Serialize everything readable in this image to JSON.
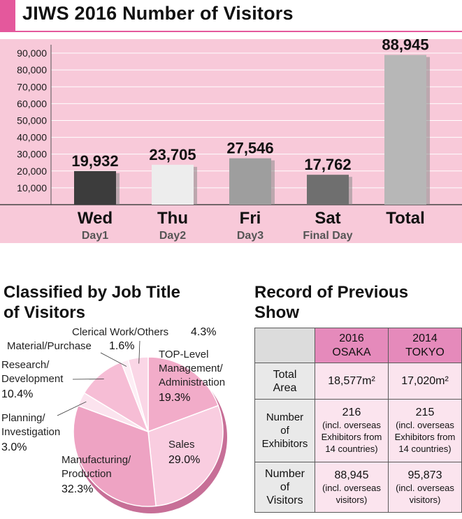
{
  "title": "JIWS 2016 Number of Visitors",
  "colors": {
    "accent": "#e4589c",
    "panel_bg": "#f8c9d9"
  },
  "chart_data": [
    {
      "type": "bar",
      "categories": [
        "Wed",
        "Thu",
        "Fri",
        "Sat",
        "Total"
      ],
      "sublabels": [
        "Day1",
        "Day2",
        "Day3",
        "Final Day",
        ""
      ],
      "values": [
        19932,
        23705,
        27546,
        17762,
        88945
      ],
      "value_labels": [
        "19,932",
        "23,705",
        "27,546",
        "17,762",
        "88,945"
      ],
      "bar_colors": [
        "#3c3c3c",
        "#ededed",
        "#9e9e9e",
        "#6f6f6f",
        "#b7b7b7"
      ],
      "yticks": [
        10000,
        20000,
        30000,
        40000,
        50000,
        60000,
        70000,
        80000,
        90000
      ],
      "ytick_labels": [
        "10,000",
        "20,000",
        "30,000",
        "40,000",
        "50,000",
        "60,000",
        "70,000",
        "80,000",
        "90,000"
      ],
      "ylim": [
        0,
        95000
      ],
      "title": "JIWS 2016 Number of Visitors"
    },
    {
      "type": "pie",
      "title_lines": [
        "Classified by Job Title",
        "of Visitors"
      ],
      "slices": [
        {
          "label_lines": [
            "TOP-Level",
            "Management/",
            "Administration"
          ],
          "pct_text": "19.3%",
          "value": 19.3,
          "color": "#f2acc9"
        },
        {
          "label_lines": [
            "Sales"
          ],
          "pct_text": "29.0%",
          "value": 29.0,
          "color": "#f9cde0"
        },
        {
          "label_lines": [
            "Manufacturing/",
            "Production"
          ],
          "pct_text": "32.3%",
          "value": 32.3,
          "color": "#eea3c3"
        },
        {
          "label_lines": [
            "Planning/",
            "Investigation"
          ],
          "pct_text": "3.0%",
          "value": 3.0,
          "color": "#fbe3ee"
        },
        {
          "label_lines": [
            "Research/",
            "Development"
          ],
          "pct_text": "10.4%",
          "value": 10.4,
          "color": "#f6bdd5"
        },
        {
          "label_lines": [
            "Material/Purchase"
          ],
          "pct_text": "1.6%",
          "value": 1.6,
          "color": "#fdeef5"
        },
        {
          "label_lines": [
            "Clerical Work/Others"
          ],
          "pct_text": "4.3%",
          "value": 4.3,
          "color": "#fad6e6"
        }
      ]
    }
  ],
  "record": {
    "title_lines": [
      "Record of Previous",
      "Show"
    ],
    "col_heads": [
      {
        "year": "2016",
        "place": "OSAKA"
      },
      {
        "year": "2014",
        "place": "TOKYO"
      }
    ],
    "rows": [
      {
        "head_lines": [
          "Total",
          "Area"
        ],
        "cells": [
          {
            "main": "18,577m²",
            "notes": []
          },
          {
            "main": "17,020m²",
            "notes": []
          }
        ]
      },
      {
        "head_lines": [
          "Number",
          "of",
          "Exhibitors"
        ],
        "cells": [
          {
            "main": "216",
            "notes": [
              "(incl. overseas",
              "Exhibitors from",
              "14 countries)"
            ]
          },
          {
            "main": "215",
            "notes": [
              "(incl. overseas",
              "Exhibitors from",
              "14 countries)"
            ]
          }
        ]
      },
      {
        "head_lines": [
          "Number",
          "of",
          "Visitors"
        ],
        "cells": [
          {
            "main": "88,945",
            "notes": [
              "(incl. overseas",
              "visitors)"
            ]
          },
          {
            "main": "95,873",
            "notes": [
              "(incl. overseas",
              "visitors)"
            ]
          }
        ]
      }
    ]
  }
}
